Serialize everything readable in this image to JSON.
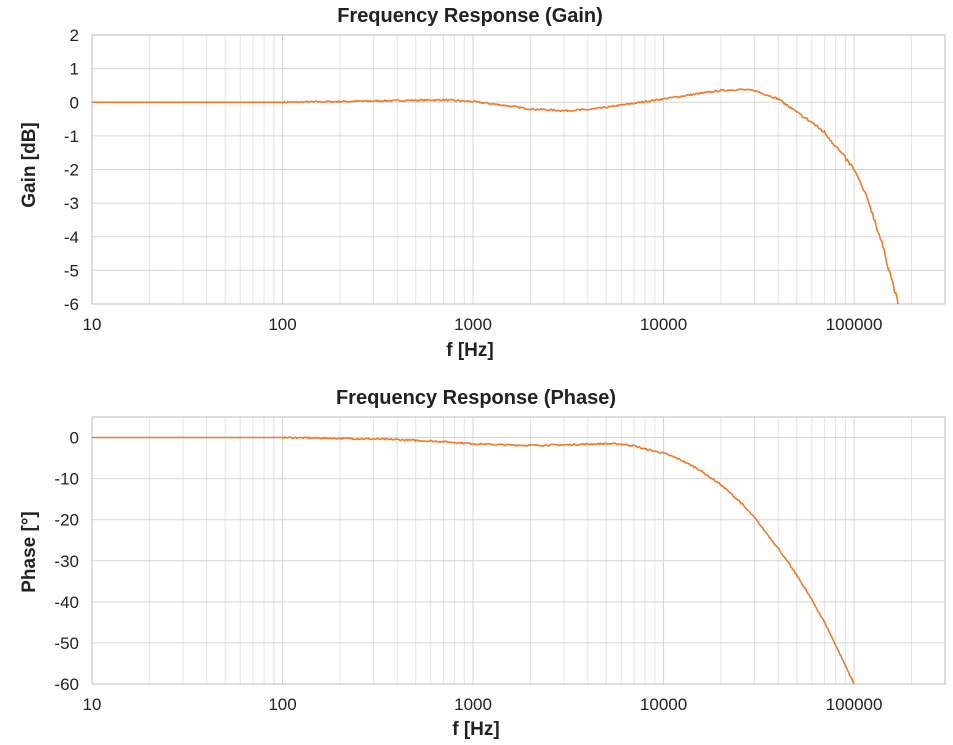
{
  "chart_data": [
    {
      "type": "line",
      "title": "Frequency Response (Gain)",
      "xlabel": "f [Hz]",
      "ylabel": "Gain [dB]",
      "x_scale": "log",
      "xlim": [
        10,
        300000
      ],
      "ylim": [
        -6,
        2
      ],
      "x_ticks": [
        10,
        100,
        1000,
        10000,
        100000
      ],
      "x_tick_labels": [
        "10",
        "100",
        "1000",
        "10000",
        "100000"
      ],
      "y_ticks": [
        2,
        1,
        0,
        -1,
        -2,
        -3,
        -4,
        -5,
        -6
      ],
      "y_tick_labels": [
        "2",
        "1",
        "0",
        "-1",
        "-2",
        "-3",
        "-4",
        "-5",
        "-6"
      ],
      "grid": true,
      "line_color": "#f07a2a",
      "series": [
        {
          "x": [
            10,
            50,
            100,
            200,
            400,
            700,
            1000,
            1500,
            2000,
            3000,
            4000,
            5000,
            7000,
            10000,
            15000,
            20000,
            25000,
            30000,
            40000,
            50000,
            60000,
            70000,
            80000,
            100000,
            120000,
            140000,
            160000,
            170000
          ],
          "values": [
            0,
            0,
            0,
            0.02,
            0.05,
            0.07,
            0.02,
            -0.1,
            -0.2,
            -0.25,
            -0.22,
            -0.15,
            -0.03,
            0.1,
            0.25,
            0.35,
            0.38,
            0.35,
            0.1,
            -0.3,
            -0.6,
            -0.9,
            -1.3,
            -2.0,
            -3.0,
            -4.2,
            -5.4,
            -6
          ]
        }
      ]
    },
    {
      "type": "line",
      "title": "Frequency Response (Phase)",
      "xlabel": "f [Hz]",
      "ylabel": "Phase [°]",
      "x_scale": "log",
      "xlim": [
        10,
        300000
      ],
      "ylim": [
        -60,
        5
      ],
      "x_ticks": [
        10,
        100,
        1000,
        10000,
        100000
      ],
      "x_tick_labels": [
        "10",
        "100",
        "1000",
        "10000",
        "100000"
      ],
      "y_ticks": [
        0,
        -10,
        -20,
        -30,
        -40,
        -50,
        -60
      ],
      "y_tick_labels": [
        "0",
        "-10",
        "-20",
        "-30",
        "-40",
        "-50",
        "-60"
      ],
      "grid": true,
      "line_color": "#f07a2a",
      "series": [
        {
          "x": [
            10,
            50,
            100,
            200,
            400,
            700,
            1000,
            1500,
            2000,
            3000,
            4000,
            5000,
            6000,
            7000,
            8000,
            10000,
            12000,
            15000,
            20000,
            25000,
            30000,
            40000,
            50000,
            60000,
            70000,
            80000,
            90000,
            100000
          ],
          "values": [
            0,
            0,
            0,
            -0.2,
            -0.5,
            -1.0,
            -1.5,
            -1.8,
            -1.9,
            -1.8,
            -1.6,
            -1.5,
            -1.6,
            -2.0,
            -2.8,
            -3.8,
            -5.2,
            -7.5,
            -11.5,
            -15.5,
            -19.5,
            -27,
            -33.5,
            -39.5,
            -45,
            -50.5,
            -55.5,
            -60
          ]
        }
      ]
    }
  ]
}
